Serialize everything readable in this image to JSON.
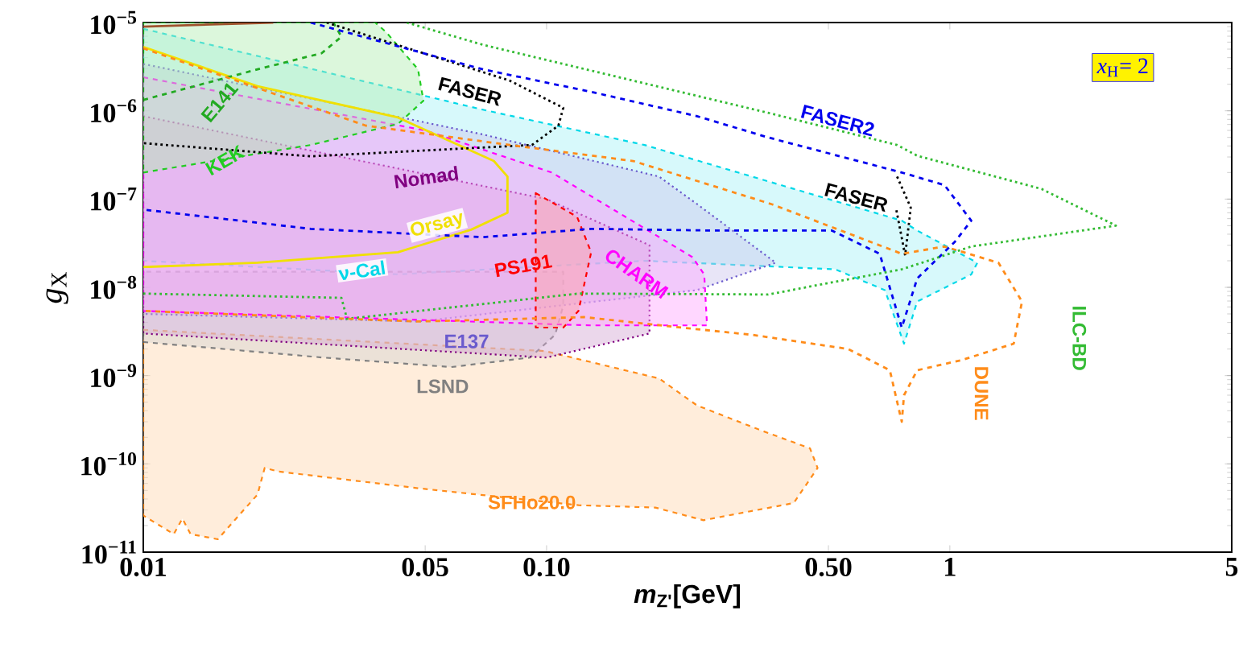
{
  "chart_data": {
    "type": "line",
    "log": "xy",
    "xlabel": "*m*$_{Z'}$[GeV]",
    "ylabel": "*g*$_{X}$",
    "xlim": [
      0.01,
      5
    ],
    "ylim": [
      1e-11,
      1e-05
    ],
    "xticks": [
      0.01,
      0.05,
      {
        "value": 0.1,
        "label": "0.10"
      },
      {
        "value": 0.5,
        "label": "0.50"
      },
      1,
      5
    ],
    "yticks": [
      {
        "value": 1e-11,
        "label": "10$^{−11}$"
      },
      {
        "value": 1e-10,
        "label": "10$^{−10}$"
      },
      {
        "value": 1e-09,
        "label": "10$^{−9}$"
      },
      {
        "value": 1e-08,
        "label": "10$^{−8}$"
      },
      {
        "value": 1e-07,
        "label": "10$^{−7}$"
      },
      {
        "value": 1e-06,
        "label": "10$^{−6}$"
      },
      {
        "value": 1e-05,
        "label": "10$^{−5}$"
      }
    ],
    "annotations": [
      "*x*$_{H}$= 2"
    ],
    "series": [
      {
        "name": "SFHo20.0",
        "type": "area",
        "color": "#ff8c1a",
        "line_style": "dashed",
        "x": [
          0.01,
          0.099,
          0.19,
          0.236,
          0.34,
          0.45,
          0.47,
          0.41,
          0.245,
          0.186,
          0.12,
          0.048,
          0.0216,
          0.02,
          0.0192,
          0.0153,
          0.0131,
          0.0125,
          0.0119,
          0.01
        ],
        "values": [
          3.3e-09,
          1.9e-09,
          9.3e-10,
          4.6e-10,
          2.4e-10,
          1.5e-10,
          9e-11,
          3.6e-11,
          2.3e-11,
          3.2e-11,
          3.4e-11,
          5.3e-11,
          8.2e-11,
          9e-11,
          4.5e-11,
          1.4e-11,
          1.6e-11,
          2.4e-11,
          1.6e-11,
          2.6e-11
        ]
      },
      {
        "name": "ν-Cal",
        "type": "area",
        "color": "#00d8e8",
        "line_style": "dashed",
        "x": [
          0.01,
          0.0695,
          0.175,
          0.76,
          0.83,
          1.17,
          1.13,
          0.83,
          0.77,
          0.69,
          0.52,
          0.175,
          0.0428,
          0.01
        ],
        "values": [
          8.5e-06,
          1.03e-06,
          4.1e-07,
          5.7e-08,
          4.4e-08,
          1.9e-08,
          1.4e-08,
          6.9e-09,
          2.3e-09,
          9.3e-09,
          1.6e-08,
          2e-08,
          1.4e-08,
          2e-08
        ]
      },
      {
        "name": "LSND",
        "type": "area",
        "color": "#808080",
        "line_style": "dashed",
        "x": [
          0.01,
          0.028,
          0.058,
          0.091,
          0.105,
          0.11,
          0.11,
          0.01
        ],
        "values": [
          2.4e-09,
          1.6e-09,
          1.25e-09,
          1.6e-09,
          2.9e-09,
          6.2e-09,
          1.5e-08,
          1.5e-08
        ]
      },
      {
        "name": "E137",
        "type": "area",
        "color": "#6a5acd",
        "line_style": "dotted",
        "x": [
          0.01,
          0.0695,
          0.19,
          0.236,
          0.37,
          0.236,
          0.048,
          0.01
        ],
        "values": [
          3.4e-06,
          5.4e-07,
          1.8e-07,
          8.8e-08,
          1.9e-08,
          9.3e-09,
          4.1e-09,
          5e-09
        ]
      },
      {
        "name": "Nomad",
        "type": "area",
        "color": "#800080",
        "line_style": "dotted",
        "x": [
          0.01,
          0.1,
          0.18,
          0.18,
          0.1,
          0.01
        ],
        "values": [
          8.7e-07,
          1e-07,
          3e-08,
          3e-09,
          1.6e-09,
          3e-09
        ]
      },
      {
        "name": "CHARM",
        "type": "area",
        "color": "#ff00ff",
        "line_style": "dashed",
        "x": [
          0.01,
          0.05,
          0.103,
          0.23,
          0.246,
          0.25,
          0.129,
          0.01
        ],
        "values": [
          2.4e-06,
          6e-07,
          2e-07,
          2.2e-08,
          1.4e-08,
          3.7e-09,
          3.7e-09,
          5.4e-09
        ]
      },
      {
        "name": "PS191",
        "type": "area",
        "color": "#ff0000",
        "line_style": "dashed",
        "x": [
          0.094,
          0.119,
          0.129,
          0.12,
          0.11,
          0.094
        ],
        "values": [
          1.17e-07,
          6.3e-08,
          2.5e-08,
          5.4e-09,
          3.5e-09,
          3.5e-09
        ]
      },
      {
        "name": "KEK",
        "type": "area",
        "color": "#22cc22",
        "line_style": "dashed",
        "x": [
          0.01,
          0.026,
          0.0428,
          0.0495,
          0.048,
          0.04,
          0.0376,
          0.01
        ],
        "values": [
          2e-07,
          4.1e-07,
          7.1e-07,
          1.3e-06,
          2.95e-06,
          7.8e-06,
          1e-05,
          1e-05
        ]
      },
      {
        "name": "Orsay",
        "color": "#f0e000",
        "line_style": "solid",
        "x": [
          0.01,
          0.0192,
          0.0428,
          0.074,
          0.08,
          0.08,
          0.065,
          0.0428,
          0.0192,
          0.01
        ],
        "values": [
          5.3e-06,
          1.9e-06,
          8.4e-07,
          2.7e-07,
          1.8e-07,
          7e-08,
          4.5e-08,
          2.5e-08,
          1.9e-08,
          1.7e-08
        ]
      },
      {
        "name": "E141",
        "color": "#22aa22",
        "line_style": "dashed",
        "x": [
          0.01,
          0.0192,
          0.0277,
          0.031,
          0.0296
        ],
        "values": [
          1.33e-06,
          2.95e-06,
          4.5e-06,
          6.9e-06,
          1e-05
        ]
      },
      {
        "name": "FASER",
        "color": "#000000",
        "line_style": "dotted",
        "x": [
          0.0285,
          0.081,
          0.11,
          0.107,
          0.092,
          0.026,
          0.01
        ],
        "values": [
          1e-05,
          2.2e-06,
          1.08e-06,
          6.8e-07,
          4.1e-07,
          3.05e-07,
          4.3e-07
        ]
      },
      {
        "name": "FASER",
        "color": "#000000",
        "line_style": "dotted",
        "x": [
          0.74,
          0.8,
          0.775,
          0.735
        ],
        "values": [
          1.8e-07,
          8e-08,
          2.3e-08,
          8e-08
        ]
      },
      {
        "name": "FASER2",
        "color": "#0000ee",
        "line_style": "dashed",
        "x": [
          0.026,
          0.0695,
          0.129,
          0.236,
          0.354,
          0.76,
          0.97,
          1.13,
          1.03,
          0.83,
          0.76,
          0.67,
          0.51,
          0.26,
          0.129,
          0.0695,
          0.026,
          0.01
        ],
        "values": [
          1e-05,
          2.95e-06,
          1.64e-06,
          8.7e-07,
          5e-07,
          2e-07,
          1.44e-07,
          5.7e-08,
          3.3e-08,
          1.26e-08,
          3.5e-09,
          2.4e-08,
          4.4e-08,
          4.4e-08,
          4.6e-08,
          3.7e-08,
          4.6e-08,
          7.6e-08
        ]
      },
      {
        "name": "ILC-BD",
        "color": "#33bb33",
        "line_style": "dotted",
        "x": [
          0.045,
          0.0695,
          0.354,
          0.74,
          0.83,
          1.69,
          2.58,
          1.13,
          0.76,
          0.354,
          0.12,
          0.032,
          0.031,
          0.01
        ],
        "values": [
          1e-05,
          5.6e-06,
          9.5e-07,
          4.1e-07,
          3.1e-07,
          1.3e-07,
          5e-08,
          2.9e-08,
          1.6e-08,
          8.3e-09,
          8.5e-09,
          4.4e-09,
          7.6e-09,
          8.5e-09
        ]
      },
      {
        "name": "DUNE",
        "color": "#ff8c1a",
        "line_style": "dashed",
        "x": [
          0.01,
          0.0356,
          0.081,
          0.164,
          0.363,
          0.76,
          0.97,
          1.32,
          1.51,
          1.44,
          1.07,
          0.83,
          0.77,
          0.76,
          0.71,
          0.56,
          0.323,
          0.216,
          0.124,
          0.048,
          0.01
        ],
        "values": [
          5.1e-06,
          6.8e-07,
          4.1e-07,
          2.7e-07,
          8.7e-08,
          2.4e-08,
          2.9e-08,
          1.9e-08,
          6.9e-09,
          2.3e-09,
          1.5e-09,
          1.15e-09,
          6e-10,
          3e-10,
          1.15e-09,
          2e-09,
          2.9e-09,
          3.5e-09,
          4.6e-09,
          4.1e-09,
          5.4e-09
        ]
      },
      {
        "color": "#a0522d",
        "line_style": "solid",
        "x": [
          0.01,
          0.021
        ],
        "values": [
          9e-06,
          1e-05
        ]
      }
    ]
  }
}
